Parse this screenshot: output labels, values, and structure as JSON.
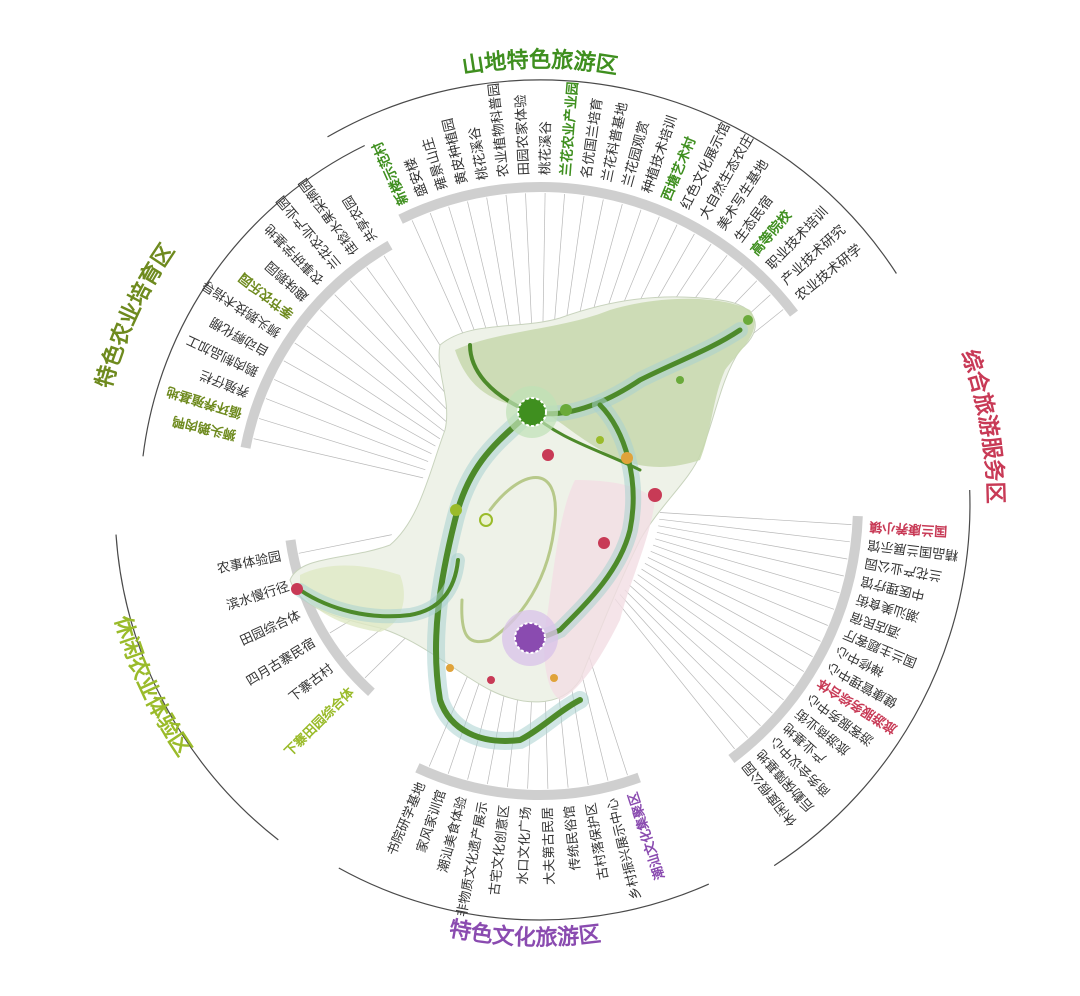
{
  "colors": {
    "mountain": "#3f8f1f",
    "agri": "#6e8a1e",
    "leisure": "#9abb2a",
    "culture": "#8a4bb0",
    "service": "#c83a56",
    "ring": "#cfcfcf",
    "rim": "#4a4a4a",
    "map_fill": "#c9d9b0",
    "road": "#4d8a2a"
  },
  "zones": [
    {
      "id": "mountain",
      "title": "山地特色旅游区",
      "color_key": "mountain",
      "items": [
        {
          "text": "新楼示范村",
          "hl": true
        },
        {
          "text": "盛安楼",
          "hl": false
        },
        {
          "text": "雍景山庄",
          "hl": false
        },
        {
          "text": "黄皮种植园",
          "hl": false
        },
        {
          "text": "桃花溪谷",
          "hl": false
        },
        {
          "text": "农业植物科普园",
          "hl": false
        },
        {
          "text": "田园农家体验",
          "hl": false
        },
        {
          "text": "桃花溪谷",
          "hl": false
        },
        {
          "text": "兰花农业产业园",
          "hl": true
        },
        {
          "text": "名优国兰培育",
          "hl": false
        },
        {
          "text": "兰花科普基地",
          "hl": false
        },
        {
          "text": "兰花园观赏",
          "hl": false
        },
        {
          "text": "种植技术培训",
          "hl": false
        },
        {
          "text": "西塘艺术村",
          "hl": true
        },
        {
          "text": "红色文化展示馆",
          "hl": false
        },
        {
          "text": "大自然生态农庄",
          "hl": false
        },
        {
          "text": "美术写生基地",
          "hl": false
        },
        {
          "text": "生态民宿",
          "hl": false
        },
        {
          "text": "高等院校",
          "hl": true
        },
        {
          "text": "职业技术培训",
          "hl": false
        },
        {
          "text": "产业技术研究",
          "hl": false
        },
        {
          "text": "农业技术研学",
          "hl": false
        }
      ]
    },
    {
      "id": "service",
      "title": "综合旅游服务区",
      "color_key": "service",
      "items": [
        {
          "text": "国兰康养小镇",
          "hl": true
        },
        {
          "text": "精品国兰展示馆",
          "hl": false
        },
        {
          "text": "兰花产业公园",
          "hl": false
        },
        {
          "text": "中医理疗馆",
          "hl": false
        },
        {
          "text": "潮汕美食街",
          "hl": false
        },
        {
          "text": "酒店民宿",
          "hl": false
        },
        {
          "text": "国兰主题客厅",
          "hl": false
        },
        {
          "text": "禅修中心",
          "hl": false
        },
        {
          "text": "健康管理中心",
          "hl": false
        },
        {
          "text": "旅游服务综合体",
          "hl": true
        },
        {
          "text": "游客服务中心",
          "hl": false
        },
        {
          "text": "旅游商业街",
          "hl": false
        },
        {
          "text": "产业基地",
          "hl": false
        },
        {
          "text": "商务会议中心",
          "hl": false
        },
        {
          "text": "后勤保障基地",
          "hl": false
        },
        {
          "text": "休闲度假公园",
          "hl": false
        }
      ]
    },
    {
      "id": "culture",
      "title": "特色文化旅游区",
      "color_key": "culture",
      "items": [
        {
          "text": "潮汕文化集聚区",
          "hl": true
        },
        {
          "text": "乡村振兴展示中心",
          "hl": false
        },
        {
          "text": "古村落保护区",
          "hl": false
        },
        {
          "text": "传统民俗馆",
          "hl": false
        },
        {
          "text": "大夫第古民居",
          "hl": false
        },
        {
          "text": "水口文化广场",
          "hl": false
        },
        {
          "text": "古宅文化创意区",
          "hl": false
        },
        {
          "text": "非物质文化遗产展示",
          "hl": false
        },
        {
          "text": "潮汕美食体验",
          "hl": false
        },
        {
          "text": "家风家训馆",
          "hl": false
        },
        {
          "text": "书院研学基地",
          "hl": false
        }
      ]
    },
    {
      "id": "leisure",
      "title": "休闲农业体验区",
      "color_key": "leisure",
      "items": [
        {
          "text": "下寨田园综合体",
          "hl": true
        },
        {
          "text": "下寨古村",
          "hl": false
        },
        {
          "text": "四月古寨民宿",
          "hl": false
        },
        {
          "text": "田园综合体",
          "hl": false
        },
        {
          "text": "滨水慢行径",
          "hl": false
        },
        {
          "text": "农事体验园",
          "hl": false
        }
      ]
    },
    {
      "id": "agri",
      "title": "特色农业培育区",
      "color_key": "agri",
      "items": [
        {
          "text": "狮头鹅肉鸭",
          "hl": true
        },
        {
          "text": "循环养殖基地",
          "hl": true
        },
        {
          "text": "养殖仔栏",
          "hl": false
        },
        {
          "text": "鹅肉制品加工",
          "hl": false
        },
        {
          "text": "自动孵化棚",
          "hl": false
        },
        {
          "text": "狮头鹅技术指导",
          "hl": false
        },
        {
          "text": "季节农乐园",
          "hl": true
        },
        {
          "text": "趣味鹅园",
          "hl": false
        },
        {
          "text": "农事研学基地",
          "hl": false
        },
        {
          "text": "兰花农业产业园",
          "hl": false
        },
        {
          "text": "佳稔水果采摘园",
          "hl": false
        },
        {
          "text": "共享农园",
          "hl": false
        }
      ]
    }
  ],
  "hubs": [
    {
      "id": "hub-green",
      "color_key": "mountain"
    },
    {
      "id": "hub-purple",
      "color_key": "culture"
    }
  ]
}
